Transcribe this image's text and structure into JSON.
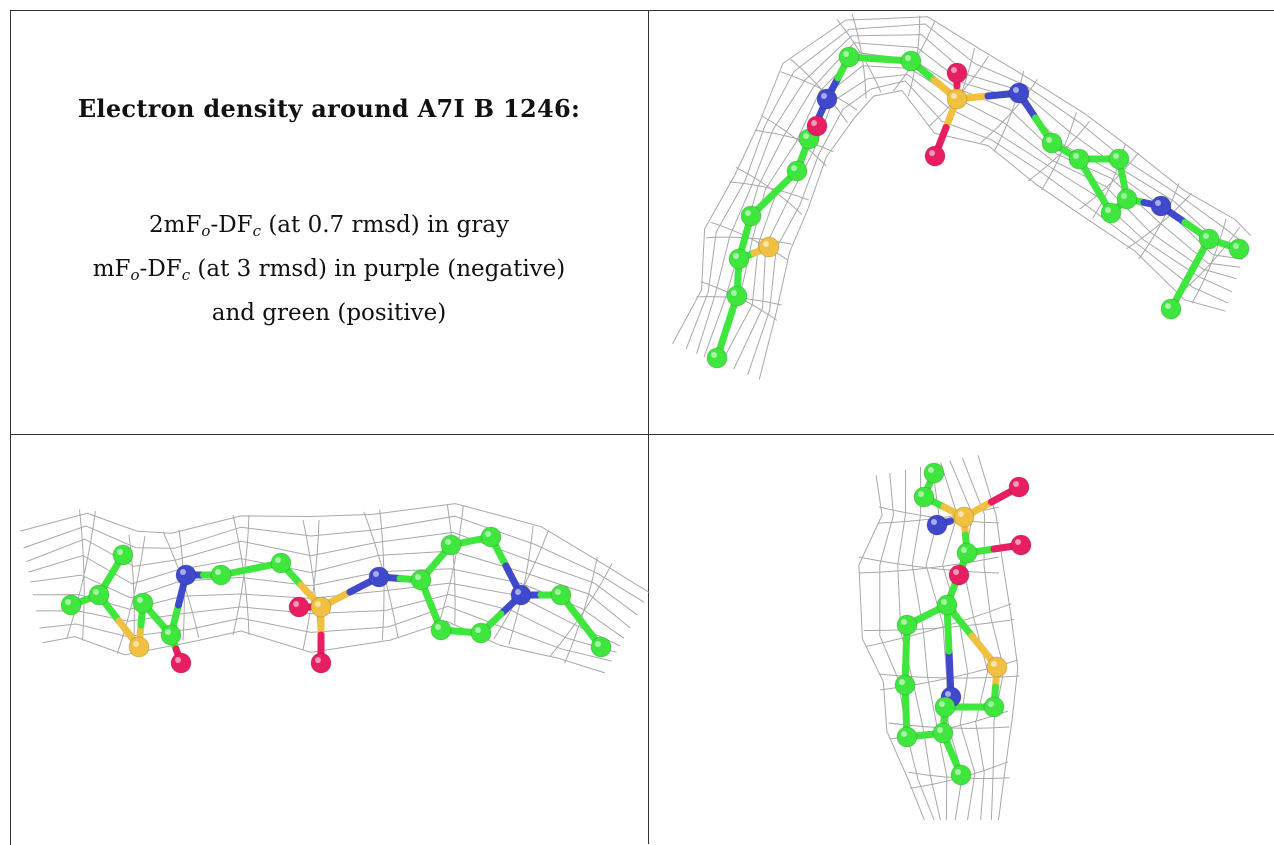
{
  "caption": {
    "title": "Electron density around A7I B 1246:",
    "line1": {
      "pre": "2mF",
      "s1": "o",
      "mid": "-DF",
      "s2": "c",
      "post": " (at 0.7 rmsd) in gray"
    },
    "line2": {
      "pre": "mF",
      "s1": "o",
      "mid": "-DF",
      "s2": "c",
      "post": " (at 3 rmsd) in purple (negative)"
    },
    "line3": "and green (positive)"
  },
  "colors": {
    "carbon": "#3ee63e",
    "nitrogen": "#4048cc",
    "oxygen": "#e81e63",
    "sulfur": "#f0c040",
    "mesh": "#a8a8a8"
  }
}
